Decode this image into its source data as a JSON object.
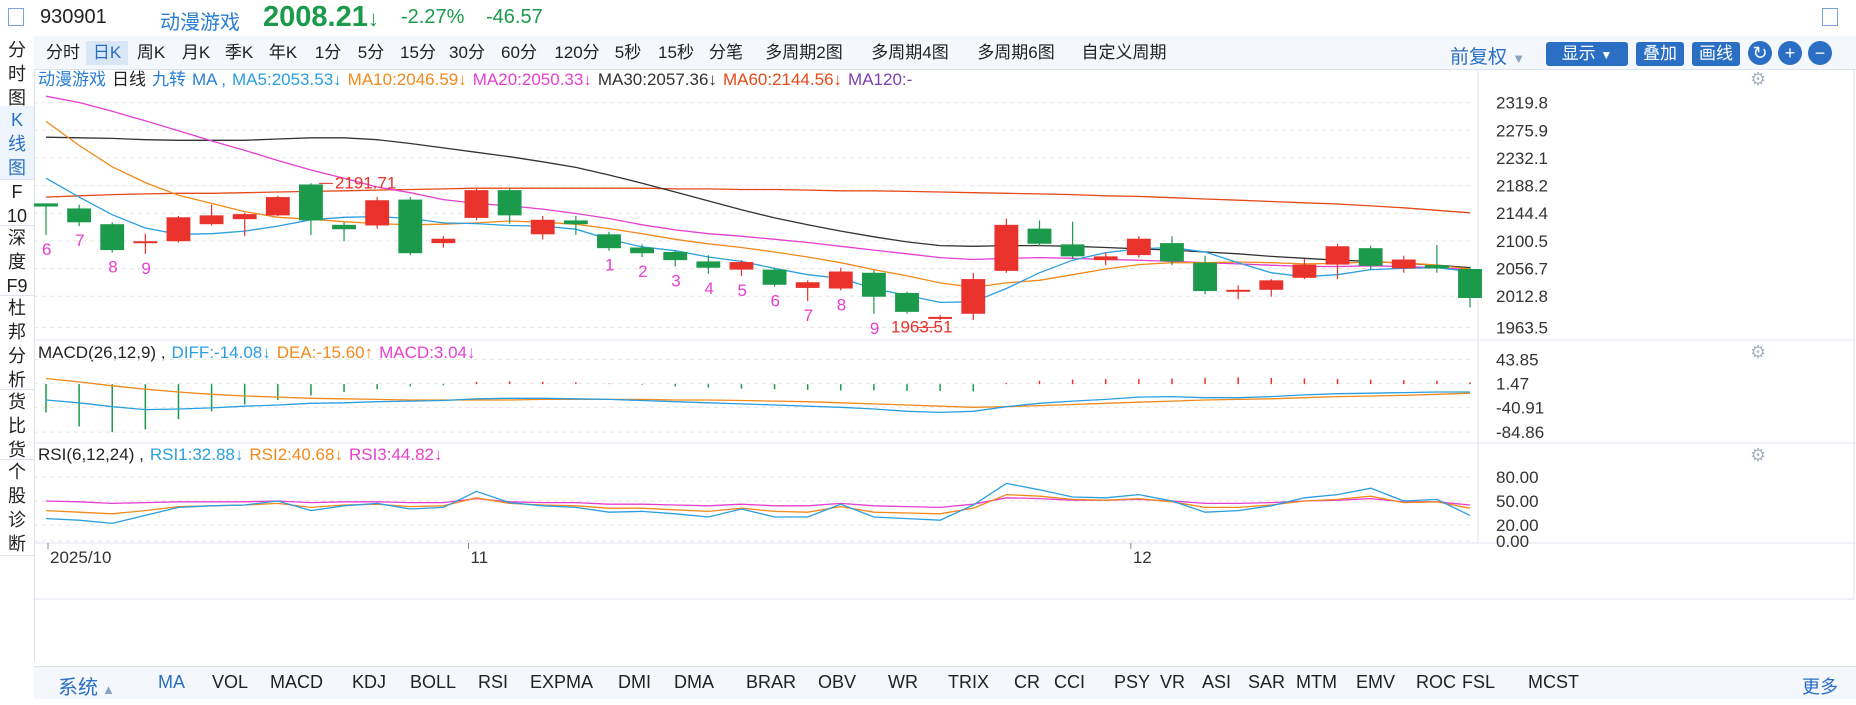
{
  "header": {
    "code": "930901",
    "name": "动漫游戏",
    "price": "2008.21",
    "price_arrow": "↓",
    "pct_change": "-2.27%",
    "change": "-46.57"
  },
  "period_tabs": [
    "分时",
    "日K",
    "周K",
    "月K",
    "季K",
    "年K",
    "1分",
    "5分",
    "15分",
    "30分",
    "60分",
    "120分",
    "5秒",
    "15秒",
    "分笔",
    "多周期2图",
    "多周期4图",
    "多周期6图",
    "自定义周期"
  ],
  "active_period": "日K",
  "toolbar": {
    "adjust_label": "前复权",
    "display_label": "显示",
    "overlay_label": "叠加",
    "draw_label": "画线",
    "refresh_icon": "↻",
    "zoom_in_icon": "+",
    "zoom_out_icon": "−"
  },
  "left_nav": [
    {
      "label": "分\n时\n图",
      "active": false
    },
    {
      "label": "K\n线\n图",
      "active": true
    },
    {
      "label": "F\n10",
      "active": false
    },
    {
      "label": "深\n度\nF9",
      "active": false
    },
    {
      "label": "杜\n邦\n分\n析",
      "active": false
    },
    {
      "label": "货\n比\n货",
      "active": false
    },
    {
      "label": "个\n股\n诊\n断",
      "active": false
    }
  ],
  "legend": {
    "main": [
      {
        "text": "动漫游戏",
        "color": "#2a7fd4"
      },
      {
        "text": "日线",
        "color": "#222222"
      },
      {
        "text": "九转",
        "color": "#2a7fd4"
      },
      {
        "text": "MA ,",
        "color": "#2a7fd4"
      },
      {
        "text": "MA5:2053.53↓",
        "color": "#2a9fe0"
      },
      {
        "text": "MA10:2046.59↓",
        "color": "#f08a1c"
      },
      {
        "text": "MA20:2050.33↓",
        "color": "#e63fd0"
      },
      {
        "text": "MA30:2057.36↓",
        "color": "#333333"
      },
      {
        "text": "MA60:2144.56↓",
        "color": "#e64a19"
      },
      {
        "text": "MA120:-",
        "color": "#7b3fb0"
      }
    ],
    "macd": [
      {
        "text": "MACD(26,12,9) ,",
        "color": "#222222"
      },
      {
        "text": "DIFF:-14.08↓",
        "color": "#2a9fe0"
      },
      {
        "text": "DEA:-15.60↑",
        "color": "#f08a1c"
      },
      {
        "text": "MACD:3.04↓",
        "color": "#e63fd0"
      }
    ],
    "rsi": [
      {
        "text": "RSI(6,12,24) ,",
        "color": "#222222"
      },
      {
        "text": "RSI1:32.88↓",
        "color": "#2a9fe0"
      },
      {
        "text": "RSI2:40.68↓",
        "color": "#f08a1c"
      },
      {
        "text": "RSI3:44.82↓",
        "color": "#e63fd0"
      }
    ]
  },
  "price_axis_labels": [
    "2319.8",
    "2275.9",
    "2232.1",
    "2188.2",
    "2144.4",
    "2100.5",
    "2056.7",
    "2012.8",
    "1963.5"
  ],
  "macd_axis_labels": [
    "43.85",
    "1.47",
    "-40.91",
    "-84.86"
  ],
  "rsi_axis_labels": [
    "80.00",
    "50.00",
    "20.00",
    "0.00"
  ],
  "time_labels": [
    "2025/10",
    "11",
    "12"
  ],
  "annotations": {
    "high": "2191.71",
    "low": "1963.51"
  },
  "indicator_tabs": [
    "系统",
    "MA",
    "VOL",
    "MACD",
    "KDJ",
    "BOLL",
    "RSI",
    "EXPMA",
    "DMI",
    "DMA",
    "BRAR",
    "OBV",
    "WR",
    "TRIX",
    "CR",
    "CCI",
    "PSY",
    "VR",
    "ASI",
    "SAR",
    "MTM",
    "EMV",
    "ROC",
    "FSL",
    "MCST"
  ],
  "more_label": "更多",
  "colors": {
    "up": "#e8322b",
    "down": "#1a9a4a",
    "ma5": "#2a9fe0",
    "ma10": "#f08a1c",
    "ma20": "#e63fd0",
    "ma30": "#333333",
    "ma60": "#e64a19",
    "nine": "#e63fd0"
  },
  "chart_data": {
    "type": "candlestick",
    "price_range": [
      1945,
      2335
    ],
    "candles": [
      {
        "o": 2160,
        "c": 2155,
        "h": 2160,
        "l": 2110,
        "n": "6"
      },
      {
        "o": 2152,
        "c": 2130,
        "h": 2158,
        "l": 2124,
        "n": "7"
      },
      {
        "o": 2127,
        "c": 2086,
        "h": 2130,
        "l": 2082,
        "n": "8"
      },
      {
        "o": 2099,
        "c": 2100,
        "h": 2112,
        "l": 2080,
        "n": "9"
      },
      {
        "o": 2100,
        "c": 2138,
        "h": 2140,
        "l": 2098,
        "n": ""
      },
      {
        "o": 2127,
        "c": 2141,
        "h": 2158,
        "l": 2125,
        "n": ""
      },
      {
        "o": 2135,
        "c": 2143,
        "h": 2145,
        "l": 2108,
        "n": ""
      },
      {
        "o": 2141,
        "c": 2170,
        "h": 2172,
        "l": 2140,
        "n": ""
      },
      {
        "o": 2190,
        "c": 2133,
        "h": 2192,
        "l": 2110,
        "n": ""
      },
      {
        "o": 2126,
        "c": 2119,
        "h": 2130,
        "l": 2100,
        "n": ""
      },
      {
        "o": 2125,
        "c": 2165,
        "h": 2170,
        "l": 2120,
        "n": ""
      },
      {
        "o": 2166,
        "c": 2081,
        "h": 2170,
        "l": 2078,
        "n": ""
      },
      {
        "o": 2097,
        "c": 2104,
        "h": 2108,
        "l": 2090,
        "n": ""
      },
      {
        "o": 2137,
        "c": 2181,
        "h": 2183,
        "l": 2133,
        "n": ""
      },
      {
        "o": 2181,
        "c": 2141,
        "h": 2184,
        "l": 2128,
        "n": ""
      },
      {
        "o": 2111,
        "c": 2134,
        "h": 2140,
        "l": 2103,
        "n": ""
      },
      {
        "o": 2133,
        "c": 2127,
        "h": 2140,
        "l": 2110,
        "n": ""
      },
      {
        "o": 2111,
        "c": 2089,
        "h": 2115,
        "l": 2085,
        "n": "1"
      },
      {
        "o": 2090,
        "c": 2081,
        "h": 2095,
        "l": 2075,
        "n": "2"
      },
      {
        "o": 2083,
        "c": 2070,
        "h": 2086,
        "l": 2060,
        "n": "3"
      },
      {
        "o": 2068,
        "c": 2058,
        "h": 2078,
        "l": 2048,
        "n": "4"
      },
      {
        "o": 2055,
        "c": 2067,
        "h": 2070,
        "l": 2045,
        "n": "5"
      },
      {
        "o": 2055,
        "c": 2031,
        "h": 2058,
        "l": 2028,
        "n": "6"
      },
      {
        "o": 2026,
        "c": 2035,
        "h": 2038,
        "l": 2005,
        "n": "7"
      },
      {
        "o": 2025,
        "c": 2052,
        "h": 2058,
        "l": 2022,
        "n": "8"
      },
      {
        "o": 2050,
        "c": 2012,
        "h": 2054,
        "l": 1985,
        "n": "9"
      },
      {
        "o": 2018,
        "c": 1988,
        "h": 2020,
        "l": 1985,
        "n": ""
      },
      {
        "o": 1980,
        "c": 1980,
        "h": 1983,
        "l": 1975,
        "n": ""
      },
      {
        "o": 1985,
        "c": 2040,
        "h": 2050,
        "l": 1975,
        "n": ""
      },
      {
        "o": 2053,
        "c": 2126,
        "h": 2136,
        "l": 2050,
        "n": ""
      },
      {
        "o": 2120,
        "c": 2096,
        "h": 2133,
        "l": 2092,
        "n": ""
      },
      {
        "o": 2095,
        "c": 2076,
        "h": 2131,
        "l": 2072,
        "n": ""
      },
      {
        "o": 2070,
        "c": 2076,
        "h": 2082,
        "l": 2062,
        "n": ""
      },
      {
        "o": 2078,
        "c": 2104,
        "h": 2108,
        "l": 2074,
        "n": ""
      },
      {
        "o": 2097,
        "c": 2068,
        "h": 2108,
        "l": 2062,
        "n": ""
      },
      {
        "o": 2066,
        "c": 2021,
        "h": 2077,
        "l": 2016,
        "n": ""
      },
      {
        "o": 2020,
        "c": 2023,
        "h": 2030,
        "l": 2008,
        "n": ""
      },
      {
        "o": 2023,
        "c": 2038,
        "h": 2040,
        "l": 2012,
        "n": ""
      },
      {
        "o": 2042,
        "c": 2063,
        "h": 2072,
        "l": 2040,
        "n": ""
      },
      {
        "o": 2063,
        "c": 2092,
        "h": 2096,
        "l": 2040,
        "n": ""
      },
      {
        "o": 2089,
        "c": 2061,
        "h": 2093,
        "l": 2055,
        "n": ""
      },
      {
        "o": 2057,
        "c": 2071,
        "h": 2077,
        "l": 2050,
        "n": ""
      },
      {
        "o": 2062,
        "c": 2057,
        "h": 2094,
        "l": 2050,
        "n": ""
      },
      {
        "o": 2056,
        "c": 2010,
        "h": 2060,
        "l": 1995,
        "n": ""
      }
    ],
    "ma5": [
      2200,
      2170,
      2142,
      2121,
      2111,
      2112,
      2116,
      2124,
      2134,
      2138,
      2139,
      2136,
      2129,
      2128,
      2125,
      2124,
      2119,
      2103,
      2091,
      2085,
      2075,
      2068,
      2057,
      2047,
      2041,
      2025,
      2014,
      2003,
      2004,
      2025,
      2050,
      2070,
      2082,
      2088,
      2090,
      2083,
      2066,
      2050,
      2044,
      2047,
      2055,
      2057,
      2058,
      2052
    ],
    "ma10": [
      2290,
      2252,
      2218,
      2193,
      2173,
      2160,
      2147,
      2138,
      2135,
      2131,
      2128,
      2126,
      2127,
      2129,
      2132,
      2130,
      2127,
      2120,
      2112,
      2103,
      2096,
      2090,
      2083,
      2075,
      2066,
      2055,
      2045,
      2034,
      2027,
      2034,
      2038,
      2047,
      2056,
      2063,
      2066,
      2066,
      2067,
      2066,
      2064,
      2065,
      2067,
      2066,
      2062,
      2056
    ],
    "ma20": [
      2330,
      2320,
      2306,
      2291,
      2275,
      2259,
      2244,
      2228,
      2213,
      2200,
      2186,
      2177,
      2166,
      2160,
      2156,
      2151,
      2144,
      2136,
      2126,
      2118,
      2112,
      2108,
      2103,
      2098,
      2092,
      2086,
      2080,
      2074,
      2071,
      2073,
      2074,
      2073,
      2071,
      2070,
      2068,
      2066,
      2064,
      2062,
      2060,
      2060,
      2061,
      2060,
      2058,
      2055
    ],
    "ma30": [
      2265,
      2264,
      2263,
      2261,
      2260,
      2260,
      2260,
      2262,
      2264,
      2264,
      2261,
      2255,
      2248,
      2241,
      2234,
      2226,
      2217,
      2205,
      2192,
      2178,
      2164,
      2150,
      2137,
      2126,
      2116,
      2107,
      2099,
      2093,
      2092,
      2093,
      2093,
      2092,
      2090,
      2088,
      2086,
      2083,
      2080,
      2076,
      2073,
      2070,
      2068,
      2065,
      2062,
      2058
    ],
    "ma60": [
      2170,
      2172,
      2174,
      2175,
      2176,
      2176,
      2177,
      2178,
      2179,
      2180,
      2181,
      2182,
      2183,
      2184,
      2184,
      2184,
      2184,
      2184,
      2184,
      2183,
      2183,
      2182,
      2182,
      2181,
      2180,
      2180,
      2179,
      2178,
      2177,
      2176,
      2175,
      2174,
      2172,
      2171,
      2169,
      2167,
      2165,
      2163,
      2161,
      2159,
      2156,
      2153,
      2149,
      2145
    ],
    "macd_range": [
      -90,
      48
    ],
    "diff": [
      -28,
      -33,
      -40,
      -45,
      -44,
      -42,
      -39,
      -37,
      -34,
      -33,
      -31,
      -30,
      -29,
      -26,
      -25,
      -25,
      -26,
      -27,
      -29,
      -31,
      -33,
      -35,
      -37,
      -39,
      -41,
      -44,
      -48,
      -50,
      -48,
      -40,
      -34,
      -30,
      -27,
      -23,
      -22,
      -24,
      -24,
      -22,
      -19,
      -17,
      -16,
      -15,
      -14,
      -14
    ],
    "dea": [
      10,
      4,
      -3,
      -9,
      -14,
      -18,
      -21,
      -23,
      -25,
      -26,
      -27,
      -28,
      -28,
      -28,
      -28,
      -27,
      -27,
      -27,
      -27,
      -28,
      -28,
      -29,
      -30,
      -31,
      -33,
      -35,
      -37,
      -39,
      -41,
      -40,
      -38,
      -36,
      -34,
      -32,
      -30,
      -28,
      -27,
      -26,
      -24,
      -22,
      -21,
      -20,
      -18,
      -16
    ],
    "macd_hist": [
      -50,
      -75,
      -85,
      -80,
      -62,
      -48,
      -36,
      -28,
      -20,
      -14,
      -9,
      -4,
      -2,
      4,
      5,
      4,
      3,
      1,
      -1,
      -4,
      -6,
      -8,
      -9,
      -10,
      -11,
      -11,
      -12,
      -12,
      -13,
      2,
      6,
      8,
      9,
      9,
      10,
      11,
      12,
      11,
      10,
      9,
      8,
      7,
      6,
      3
    ],
    "rsi_range": [
      0,
      100
    ],
    "rsi1": [
      28,
      26,
      22,
      32,
      42,
      44,
      45,
      50,
      38,
      44,
      47,
      40,
      42,
      62,
      48,
      44,
      42,
      36,
      37,
      34,
      30,
      40,
      30,
      30,
      46,
      30,
      28,
      26,
      45,
      72,
      64,
      55,
      54,
      58,
      50,
      36,
      38,
      44,
      54,
      58,
      66,
      50,
      52,
      32
    ],
    "rsi2": [
      38,
      36,
      34,
      38,
      43,
      44,
      45,
      47,
      42,
      45,
      46,
      43,
      44,
      54,
      47,
      45,
      44,
      41,
      41,
      39,
      37,
      41,
      37,
      36,
      43,
      36,
      35,
      34,
      41,
      58,
      56,
      52,
      51,
      53,
      49,
      42,
      42,
      45,
      50,
      52,
      56,
      48,
      49,
      41
    ],
    "rsi3": [
      50,
      49,
      47,
      48,
      49,
      49,
      49,
      50,
      48,
      49,
      49,
      48,
      48,
      53,
      49,
      48,
      48,
      46,
      46,
      45,
      44,
      46,
      44,
      44,
      47,
      44,
      43,
      42,
      46,
      54,
      53,
      51,
      51,
      52,
      50,
      47,
      47,
      48,
      50,
      51,
      53,
      49,
      49,
      45
    ]
  }
}
